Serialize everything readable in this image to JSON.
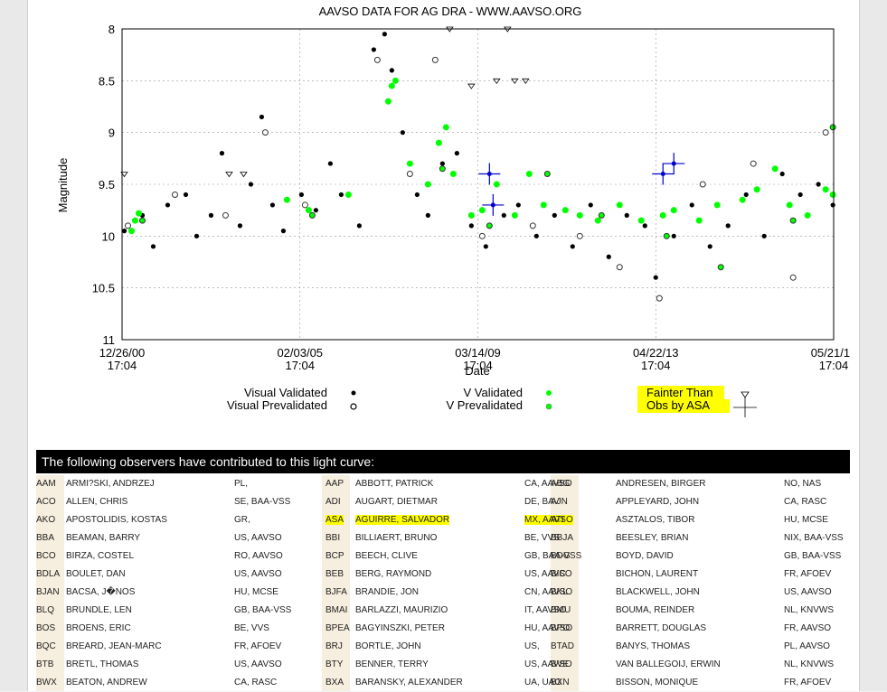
{
  "chart_data": {
    "type": "scatter",
    "title": "AAVSO DATA FOR AG DRA - WWW.AAVSO.ORG",
    "xlabel": "Date",
    "ylabel": "Magnitude",
    "y_inverted": true,
    "ylim": [
      8,
      11
    ],
    "y_ticks": [
      "8",
      "8.5",
      "9",
      "9.5",
      "10",
      "10.5",
      "11"
    ],
    "x_ticks": [
      {
        "date": "12/26/00",
        "time": "17:04"
      },
      {
        "date": "02/03/05",
        "time": "17:04"
      },
      {
        "date": "03/14/09",
        "time": "17:04"
      },
      {
        "date": "04/22/13",
        "time": "17:04"
      },
      {
        "date": "05/21/17",
        "time": "17:04"
      }
    ],
    "grid": true,
    "series": [
      {
        "name": "Visual Validated",
        "color": "#000000",
        "marker": "filled-circle",
        "points": [
          [
            "2001-01",
            9.95
          ],
          [
            "2001-06",
            9.8
          ],
          [
            "2001-09",
            10.1
          ],
          [
            "2002-01",
            9.7
          ],
          [
            "2002-06",
            9.6
          ],
          [
            "2002-09",
            10.0
          ],
          [
            "2003-01",
            9.8
          ],
          [
            "2003-04",
            9.2
          ],
          [
            "2003-09",
            9.9
          ],
          [
            "2003-12",
            9.5
          ],
          [
            "2004-03",
            8.85
          ],
          [
            "2004-06",
            9.7
          ],
          [
            "2004-09",
            9.95
          ],
          [
            "2005-02",
            9.6
          ],
          [
            "2005-06",
            9.75
          ],
          [
            "2005-10",
            9.3
          ],
          [
            "2006-01",
            9.6
          ],
          [
            "2006-06",
            9.9
          ],
          [
            "2006-10",
            8.2
          ],
          [
            "2007-01",
            8.05
          ],
          [
            "2007-03",
            8.4
          ],
          [
            "2007-06",
            9.0
          ],
          [
            "2007-10",
            9.6
          ],
          [
            "2008-01",
            9.8
          ],
          [
            "2008-05",
            9.3
          ],
          [
            "2008-09",
            9.2
          ],
          [
            "2009-01",
            9.9
          ],
          [
            "2009-05",
            10.1
          ],
          [
            "2009-10",
            9.8
          ],
          [
            "2010-02",
            9.7
          ],
          [
            "2010-07",
            10.0
          ],
          [
            "2010-12",
            9.8
          ],
          [
            "2011-05",
            10.1
          ],
          [
            "2011-10",
            9.7
          ],
          [
            "2012-03",
            10.2
          ],
          [
            "2012-08",
            9.8
          ],
          [
            "2013-01",
            9.9
          ],
          [
            "2013-04",
            10.4
          ],
          [
            "2013-09",
            10.0
          ],
          [
            "2014-02",
            9.7
          ],
          [
            "2014-07",
            10.1
          ],
          [
            "2014-12",
            9.9
          ],
          [
            "2015-05",
            9.6
          ],
          [
            "2015-10",
            10.0
          ],
          [
            "2016-03",
            9.4
          ],
          [
            "2016-08",
            9.6
          ],
          [
            "2017-01",
            9.5
          ],
          [
            "2017-05",
            9.7
          ]
        ]
      },
      {
        "name": "Visual Prevalidated",
        "color": "#000000",
        "marker": "hatched-circle",
        "points": [
          [
            "2001-02",
            9.9
          ],
          [
            "2002-03",
            9.6
          ],
          [
            "2003-05",
            9.8
          ],
          [
            "2004-04",
            9.0
          ],
          [
            "2005-03",
            9.7
          ],
          [
            "2006-11",
            8.3
          ],
          [
            "2007-08",
            9.4
          ],
          [
            "2008-03",
            8.3
          ],
          [
            "2009-04",
            10.0
          ],
          [
            "2010-06",
            9.9
          ],
          [
            "2011-07",
            10.0
          ],
          [
            "2012-06",
            10.3
          ],
          [
            "2013-05",
            10.6
          ],
          [
            "2014-05",
            9.5
          ],
          [
            "2015-07",
            9.3
          ],
          [
            "2016-06",
            10.4
          ],
          [
            "2017-03",
            9.0
          ]
        ]
      },
      {
        "name": "V Validated",
        "color": "#00ff00",
        "marker": "filled-circle",
        "points": [
          [
            "2001-03",
            9.95
          ],
          [
            "2001-04",
            9.85
          ],
          [
            "2001-05",
            9.78
          ],
          [
            "2004-10",
            9.65
          ],
          [
            "2005-04",
            9.75
          ],
          [
            "2006-03",
            9.6
          ],
          [
            "2007-02",
            8.7
          ],
          [
            "2007-03",
            8.55
          ],
          [
            "2007-04",
            8.5
          ],
          [
            "2007-08",
            9.3
          ],
          [
            "2008-01",
            9.5
          ],
          [
            "2008-04",
            9.1
          ],
          [
            "2008-06",
            8.95
          ],
          [
            "2008-08",
            9.4
          ],
          [
            "2009-01",
            9.8
          ],
          [
            "2009-04",
            9.75
          ],
          [
            "2009-08",
            9.5
          ],
          [
            "2010-01",
            9.8
          ],
          [
            "2010-05",
            9.4
          ],
          [
            "2010-09",
            9.7
          ],
          [
            "2011-03",
            9.75
          ],
          [
            "2011-07",
            9.8
          ],
          [
            "2011-12",
            9.85
          ],
          [
            "2012-06",
            9.7
          ],
          [
            "2012-12",
            9.85
          ],
          [
            "2013-06",
            9.8
          ],
          [
            "2013-09",
            9.75
          ],
          [
            "2014-04",
            9.85
          ],
          [
            "2014-09",
            9.7
          ],
          [
            "2015-04",
            9.65
          ],
          [
            "2015-08",
            9.55
          ],
          [
            "2016-01",
            9.35
          ],
          [
            "2016-05",
            9.7
          ],
          [
            "2016-10",
            9.8
          ],
          [
            "2017-03",
            9.55
          ],
          [
            "2017-05",
            9.6
          ]
        ]
      },
      {
        "name": "V Prevalidated",
        "color": "#00ff00",
        "marker": "hatched-circle",
        "points": [
          [
            "2001-06",
            9.85
          ],
          [
            "2005-05",
            9.8
          ],
          [
            "2008-05",
            9.35
          ],
          [
            "2009-06",
            9.9
          ],
          [
            "2010-10",
            9.4
          ],
          [
            "2012-01",
            9.8
          ],
          [
            "2013-07",
            10.0
          ],
          [
            "2014-10",
            10.3
          ],
          [
            "2016-06",
            9.85
          ],
          [
            "2017-05",
            8.95
          ]
        ]
      },
      {
        "name": "Fainter Than",
        "color": "#000000",
        "marker": "triangle-down",
        "points": [
          [
            "2001-01",
            9.4
          ],
          [
            "2003-06",
            9.4
          ],
          [
            "2003-10",
            9.4
          ],
          [
            "2008-07",
            8.0
          ],
          [
            "2009-01",
            8.55
          ],
          [
            "2009-08",
            8.5
          ],
          [
            "2009-11",
            8.0
          ],
          [
            "2010-01",
            8.5
          ],
          [
            "2010-04",
            8.5
          ]
        ]
      },
      {
        "name": "Obs by ASA",
        "color": "#0000cc",
        "marker": "cross",
        "points": [
          [
            "2009-06",
            9.4
          ],
          [
            "2009-07",
            9.7
          ],
          [
            "2013-06",
            9.4
          ],
          [
            "2013-09",
            9.3
          ]
        ]
      }
    ]
  },
  "legend": {
    "visual_validated": "Visual Validated",
    "visual_prevalidated": "Visual Prevalidated",
    "v_validated": "V Validated",
    "v_prevalidated": "V Prevalidated",
    "fainter_than": "Fainter Than",
    "obs_by_asa": "Obs by ASA"
  },
  "observers_header": "The following observers have contributed to this light curve:",
  "observers": [
    [
      [
        "AAM",
        "ARMI?SKI, ANDRZEJ",
        "PL,"
      ],
      [
        "AAP",
        "ABBOTT, PATRICK",
        "CA, AAVSO"
      ],
      [
        "ABG",
        "ANDRESEN, BIRGER",
        "NO, NAS"
      ]
    ],
    [
      [
        "ACO",
        "ALLEN, CHRIS",
        "SE, BAA-VSS"
      ],
      [
        "ADI",
        "AUGART, DIETMAR",
        "DE, BAV"
      ],
      [
        "AJN",
        "APPLEYARD, JOHN",
        "CA, RASC"
      ]
    ],
    [
      [
        "AKO",
        "APOSTOLIDIS, KOSTAS",
        "GR,"
      ],
      [
        "ASA",
        "AGUIRRE, SALVADOR",
        "MX, AAVSO"
      ],
      [
        "ATI",
        "ASZTALOS, TIBOR",
        "HU, MCSE"
      ]
    ],
    [
      [
        "BBA",
        "BEAMAN, BARRY",
        "US, AAVSO"
      ],
      [
        "BBI",
        "BILLIAERT, BRUNO",
        "BE, VVS"
      ],
      [
        "BBJA",
        "BEESLEY, BRIAN",
        "NIX, BAA-VSS"
      ]
    ],
    [
      [
        "BCO",
        "BIRZA, COSTEL",
        "RO, AAVSO"
      ],
      [
        "BCP",
        "BEECH, CLIVE",
        "GB, BAA-VSS"
      ],
      [
        "BDG",
        "BOYD, DAVID",
        "GB, BAA-VSS"
      ]
    ],
    [
      [
        "BDLA",
        "BOULET, DAN",
        "US, AAVSO"
      ],
      [
        "BEB",
        "BERG, RAYMOND",
        "US, AAVSO"
      ],
      [
        "BIC",
        "BICHON, LAURENT",
        "FR, AFOEV"
      ]
    ],
    [
      [
        "BJAN",
        "BACSA, J�NOS",
        "HU, MCSE"
      ],
      [
        "BJFA",
        "BRANDIE, JON",
        "CN, AAVSO"
      ],
      [
        "BKL",
        "BLACKWELL, JOHN",
        "US, AAVSO"
      ]
    ],
    [
      [
        "BLQ",
        "BRUNDLE, LEN",
        "GB, BAA-VSS"
      ],
      [
        "BMAI",
        "BARLAZZI, MAURIZIO",
        "IT, AAVSO"
      ],
      [
        "BMU",
        "BOUMA, REINDER",
        "NL, KNVWS"
      ]
    ],
    [
      [
        "BOS",
        "BROENS, ERIC",
        "BE, VVS"
      ],
      [
        "BPEA",
        "BAGYINSZKI, PETER",
        "HU, AAVSO"
      ],
      [
        "BPO",
        "BARRETT, DOUGLAS",
        "FR, AAVSO"
      ]
    ],
    [
      [
        "BQC",
        "BREARD, JEAN-MARC",
        "FR, AFOEV"
      ],
      [
        "BRJ",
        "BORTLE, JOHN",
        "US,"
      ],
      [
        "BTAD",
        "BANYS, THOMAS",
        "PL, AAVSO"
      ]
    ],
    [
      [
        "BTB",
        "BRETL, THOMAS",
        "US, AAVSO"
      ],
      [
        "BTY",
        "BENNER, TERRY",
        "US, AAVSO"
      ],
      [
        "BVE",
        "VAN BALLEGOIJ, ERWIN",
        "NL, KNVWS"
      ]
    ],
    [
      [
        "BWX",
        "BEATON, ANDREW",
        "CA, RASC"
      ],
      [
        "BXA",
        "BARANSKY, ALEXANDER",
        "UA, UAG"
      ],
      [
        "BXN",
        "BISSON, MONIQUE",
        "FR, AFOEV"
      ]
    ]
  ],
  "highlight_code": "ASA"
}
